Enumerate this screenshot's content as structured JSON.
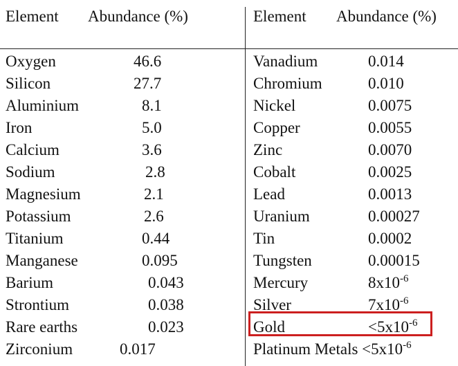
{
  "header": {
    "left_element": "Element",
    "left_abundance": "Abundance (%)",
    "right_element": "Element",
    "right_abundance": "Abundance (%)"
  },
  "left_rows": [
    {
      "element": "Oxygen",
      "abundance": "46.6"
    },
    {
      "element": "Silicon",
      "abundance": "27.7"
    },
    {
      "element": "Aluminium",
      "abundance": "8.1"
    },
    {
      "element": "Iron",
      "abundance": "5.0"
    },
    {
      "element": "Calcium",
      "abundance": "3.6"
    },
    {
      "element": "Sodium",
      "abundance": "2.8"
    },
    {
      "element": "Magnesium",
      "abundance": "2.1"
    },
    {
      "element": "Potassium",
      "abundance": "2.6"
    },
    {
      "element": "Titanium",
      "abundance": "0.44"
    },
    {
      "element": "Manganese",
      "abundance": "0.095"
    },
    {
      "element": "Barium",
      "abundance": "0.043"
    },
    {
      "element": "Strontium",
      "abundance": "0.038"
    },
    {
      "element": "Rare earths",
      "abundance": "0.023"
    },
    {
      "element": "Zirconium",
      "abundance": "0.017"
    }
  ],
  "right_rows": [
    {
      "element": "Vanadium",
      "abundance": "0.014"
    },
    {
      "element": "Chromium",
      "abundance": "0.010"
    },
    {
      "element": "Nickel",
      "abundance": "0.0075"
    },
    {
      "element": "Copper",
      "abundance": "0.0055"
    },
    {
      "element": "Zinc",
      "abundance": "0.0070"
    },
    {
      "element": "Cobalt",
      "abundance": "0.0025"
    },
    {
      "element": "Lead",
      "abundance": "0.0013"
    },
    {
      "element": "Uranium",
      "abundance": "0.00027"
    },
    {
      "element": "Tin",
      "abundance": "0.0002"
    },
    {
      "element": "Tungsten",
      "abundance": "0.00015"
    },
    {
      "element": "Mercury",
      "abundance": "8x10",
      "exponent": "-6"
    },
    {
      "element": "Silver",
      "abundance": "7x10",
      "exponent": "-6"
    },
    {
      "element": "Gold",
      "abundance": "<5x10",
      "exponent": "-6"
    }
  ],
  "last_row": {
    "text": "Platinum Metals <5x10",
    "exponent": "-6"
  },
  "highlight": {
    "row": "Gold",
    "color": "#cc1f1f"
  }
}
